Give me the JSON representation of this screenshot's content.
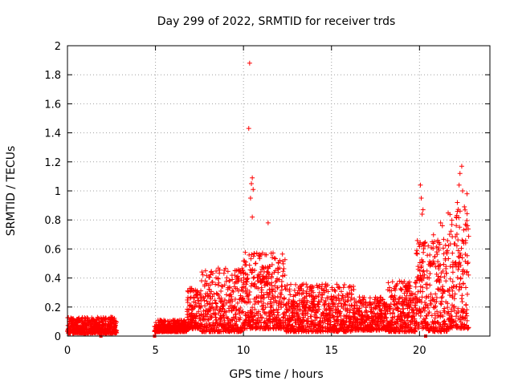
{
  "chart_data": {
    "type": "scatter",
    "title": "Day 299 of 2022, SRMTID for receiver trds",
    "xlabel": "GPS time / hours",
    "ylabel": "SRMTID / TECUs",
    "xlim": [
      0,
      24
    ],
    "ylim": [
      0,
      2
    ],
    "xticks": [
      0,
      5,
      10,
      15,
      20
    ],
    "yticks": [
      0,
      0.2,
      0.4,
      0.6,
      0.8,
      1,
      1.2,
      1.4,
      1.6,
      1.8,
      2
    ],
    "ytick_labels": [
      "0",
      "0.2",
      "0.4",
      "0.6",
      "0.8",
      "1",
      "1.2",
      "1.4",
      "1.6",
      "1.8",
      "2"
    ],
    "grid": true,
    "marker": "+",
    "color": "#ff0000",
    "outliers": [
      {
        "x": 10.35,
        "y": 1.88
      },
      {
        "x": 10.3,
        "y": 1.43
      },
      {
        "x": 10.5,
        "y": 1.09
      },
      {
        "x": 10.45,
        "y": 1.05
      },
      {
        "x": 10.55,
        "y": 1.01
      },
      {
        "x": 10.4,
        "y": 0.95
      },
      {
        "x": 10.5,
        "y": 0.82
      },
      {
        "x": 11.4,
        "y": 0.78
      },
      {
        "x": 20.05,
        "y": 1.04
      },
      {
        "x": 20.1,
        "y": 0.95
      },
      {
        "x": 20.2,
        "y": 0.87
      },
      {
        "x": 20.15,
        "y": 0.84
      },
      {
        "x": 22.4,
        "y": 1.17
      },
      {
        "x": 22.3,
        "y": 1.12
      },
      {
        "x": 22.25,
        "y": 1.04
      },
      {
        "x": 22.45,
        "y": 1.0
      },
      {
        "x": 22.7,
        "y": 0.98
      },
      {
        "x": 22.15,
        "y": 0.92
      },
      {
        "x": 22.55,
        "y": 0.89
      },
      {
        "x": 21.2,
        "y": 0.78
      },
      {
        "x": 21.3,
        "y": 0.76
      }
    ],
    "baseline_markers": [
      {
        "x": 1.9,
        "y": 0
      },
      {
        "x": 4.95,
        "y": 0
      },
      {
        "x": 20.35,
        "y": 0
      }
    ],
    "segments": [
      {
        "x_start": 0.0,
        "x_end": 2.8,
        "y_min": 0.02,
        "y_max": 0.13,
        "step": 0.012
      },
      {
        "x_start": 4.95,
        "x_end": 6.8,
        "y_min": 0.03,
        "y_max": 0.11,
        "step": 0.012
      },
      {
        "x_start": 6.8,
        "x_end": 7.6,
        "y_min": 0.05,
        "y_max": 0.33,
        "step": 0.012
      },
      {
        "x_start": 7.6,
        "x_end": 10.0,
        "y_min": 0.03,
        "y_max": 0.47,
        "step": 0.012
      },
      {
        "x_start": 10.0,
        "x_end": 12.4,
        "y_min": 0.05,
        "y_max": 0.58,
        "step": 0.012
      },
      {
        "x_start": 12.4,
        "x_end": 16.3,
        "y_min": 0.03,
        "y_max": 0.36,
        "step": 0.012
      },
      {
        "x_start": 16.3,
        "x_end": 18.2,
        "y_min": 0.04,
        "y_max": 0.27,
        "step": 0.012
      },
      {
        "x_start": 18.2,
        "x_end": 19.8,
        "y_min": 0.03,
        "y_max": 0.38,
        "step": 0.012
      },
      {
        "x_start": 19.8,
        "x_end": 20.5,
        "y_min": 0.05,
        "y_max": 0.66,
        "step": 0.012
      },
      {
        "x_start": 20.5,
        "x_end": 21.6,
        "y_min": 0.03,
        "y_max": 0.7,
        "step": 0.012
      },
      {
        "x_start": 21.6,
        "x_end": 22.8,
        "y_min": 0.05,
        "y_max": 0.88,
        "step": 0.012
      }
    ]
  }
}
